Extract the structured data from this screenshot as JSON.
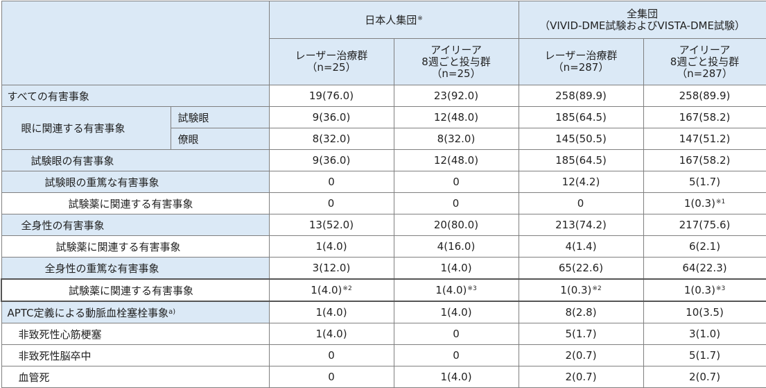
{
  "header": {
    "group_japanese": "日本人集団",
    "group_japanese_mark": "※",
    "group_all_line1": "全集団",
    "group_all_line2": "（VIVID-DME試験およびVISTA-DME試験）",
    "columns": [
      {
        "line1": "レーザー治療群",
        "line2": "（n=25）",
        "line3": ""
      },
      {
        "line1": "アイリーア",
        "line2": "8週ごと投与群",
        "line3": "（n=25）"
      },
      {
        "line1": "レーザー治療群",
        "line2": "（n=287）",
        "line3": ""
      },
      {
        "line1": "アイリーア",
        "line2": "8週ごと投与群",
        "line3": "（n=287）"
      }
    ]
  },
  "rows": [
    {
      "label": "すべての有害事象",
      "values": [
        "19(76.0)",
        "23(92.0)",
        "258(89.9)",
        "258(89.9)"
      ],
      "marks": [
        "",
        "",
        "",
        ""
      ]
    },
    {
      "label": "眼に関連する有害事象",
      "sub": "試験眼",
      "values": [
        "9(36.0)",
        "12(48.0)",
        "185(64.5)",
        "167(58.2)"
      ],
      "marks": [
        "",
        "",
        "",
        ""
      ]
    },
    {
      "label": "",
      "sub": "僚眼",
      "values": [
        "8(32.0)",
        "8(32.0)",
        "145(50.5)",
        "147(51.2)"
      ],
      "marks": [
        "",
        "",
        "",
        ""
      ]
    },
    {
      "label": "試験眼の有害事象",
      "values": [
        "9(36.0)",
        "12(48.0)",
        "185(64.5)",
        "167(58.2)"
      ],
      "marks": [
        "",
        "",
        "",
        ""
      ]
    },
    {
      "label": "試験眼の重篤な有害事象",
      "values": [
        "0",
        "0",
        "12(4.2)",
        "5(1.7)"
      ],
      "marks": [
        "",
        "",
        "",
        ""
      ]
    },
    {
      "label": "試験薬に関連する有害事象",
      "values": [
        "0",
        "0",
        "0",
        "1(0.3)"
      ],
      "marks": [
        "",
        "",
        "",
        "※1"
      ]
    },
    {
      "label": "全身性の有害事象",
      "values": [
        "13(52.0)",
        "20(80.0)",
        "213(74.2)",
        "217(75.6)"
      ],
      "marks": [
        "",
        "",
        "",
        ""
      ]
    },
    {
      "label": "試験薬に関連する有害事象",
      "values": [
        "1(4.0)",
        "4(16.0)",
        "4(1.4)",
        "6(2.1)"
      ],
      "marks": [
        "",
        "",
        "",
        ""
      ]
    },
    {
      "label": "全身性の重篤な有害事象",
      "values": [
        "3(12.0)",
        "1(4.0)",
        "65(22.6)",
        "64(22.3)"
      ],
      "marks": [
        "",
        "",
        "",
        ""
      ]
    },
    {
      "label": "試験薬に関連する有害事象",
      "values": [
        "1(4.0)",
        "1(4.0)",
        "1(0.3)",
        "1(0.3)"
      ],
      "marks": [
        "※2",
        "※3",
        "※2",
        "※3"
      ]
    },
    {
      "label": "APTC定義による動脈血栓塞栓事象",
      "label_mark": "a)",
      "values": [
        "1(4.0)",
        "1(4.0)",
        "8(2.8)",
        "10(3.5)"
      ],
      "marks": [
        "",
        "",
        "",
        ""
      ]
    },
    {
      "label": "非致死性心筋梗塞",
      "values": [
        "1(4.0)",
        "0",
        "5(1.7)",
        "3(1.0)"
      ],
      "marks": [
        "",
        "",
        "",
        ""
      ]
    },
    {
      "label": "非致死性脳卒中",
      "values": [
        "0",
        "0",
        "2(0.7)",
        "5(1.7)"
      ],
      "marks": [
        "",
        "",
        "",
        ""
      ]
    },
    {
      "label": "血管死",
      "values": [
        "0",
        "1(4.0)",
        "2(0.7)",
        "2(0.7)"
      ],
      "marks": [
        "",
        "",
        "",
        ""
      ]
    }
  ]
}
